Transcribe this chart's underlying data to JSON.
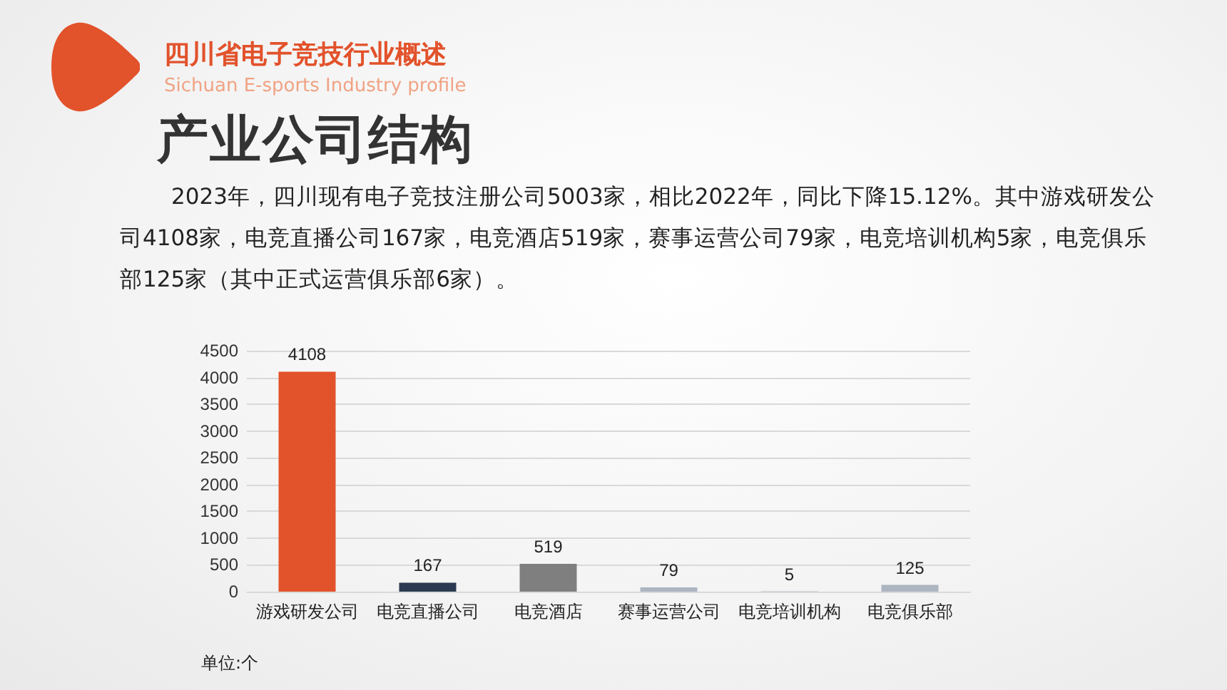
{
  "chart_data": {
    "type": "bar",
    "title": "产业公司结构",
    "annotations": [
      "四川省电子竞技行业概述",
      "Sichuan E-sports Industry profile",
      "2023年，四川现有电子竞技注册公司5003家，相比2022年，同比下降15.12%。其中游戏研发公司4108家，电竞直播公司167家，电竞酒店519家，赛事运营公司79家，电竞培训机构5家，电竞俱乐部125家（其中正式运营俱乐部6家）。",
      "单位:个"
    ],
    "categories": [
      "游戏研发公司",
      "电竞直播公司",
      "电竞酒店",
      "赛事运营公司",
      "电竞培训机构",
      "电竞俱乐部"
    ],
    "values": [
      4108,
      167,
      519,
      79,
      5,
      125
    ],
    "colors": [
      "#e2522b",
      "#2b3a50",
      "#7f7f7f",
      "#adb5c1",
      "#adb5c1",
      "#adb5c1"
    ],
    "ylim": [
      0,
      4500
    ],
    "yticks": [
      0,
      500,
      1000,
      1500,
      2000,
      2500,
      3000,
      3500,
      4000,
      4500
    ],
    "grid": "y",
    "data_labels": true
  }
}
